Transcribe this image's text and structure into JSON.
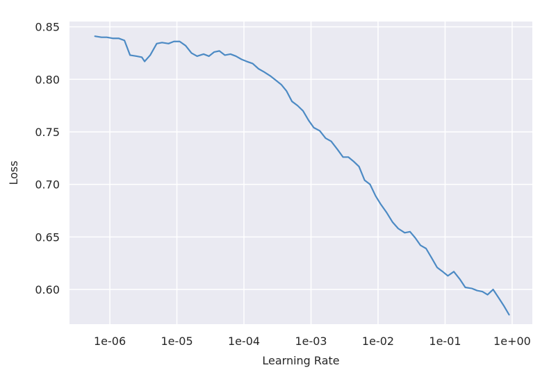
{
  "chart_data": {
    "type": "line",
    "title": "",
    "xlabel": "Learning Rate",
    "ylabel": "Loss",
    "x_scale": "log",
    "x_ticks": [
      {
        "value": 1e-06,
        "label": "1e-06"
      },
      {
        "value": 1e-05,
        "label": "1e-05"
      },
      {
        "value": 0.0001,
        "label": "1e-04"
      },
      {
        "value": 0.001,
        "label": "1e-03"
      },
      {
        "value": 0.01,
        "label": "1e-02"
      },
      {
        "value": 0.1,
        "label": "1e-01"
      },
      {
        "value": 1,
        "label": "1e+00"
      }
    ],
    "y_ticks": [
      {
        "value": 0.6,
        "label": "0.60"
      },
      {
        "value": 0.65,
        "label": "0.65"
      },
      {
        "value": 0.7,
        "label": "0.70"
      },
      {
        "value": 0.75,
        "label": "0.75"
      },
      {
        "value": 0.8,
        "label": "0.80"
      },
      {
        "value": 0.85,
        "label": "0.85"
      }
    ],
    "xlim": [
      2.5e-07,
      2.0
    ],
    "ylim": [
      0.567,
      0.855
    ],
    "grid": true,
    "background_color": "#eaeaf2",
    "grid_color": "#ffffff",
    "line_color": "#4c8ac4",
    "series": [
      {
        "x": [
          6e-07,
          7.5e-07,
          9e-07,
          1.1e-06,
          1.35e-06,
          1.65e-06,
          2e-06,
          2.5e-06,
          3e-06,
          3.3e-06,
          4e-06,
          5e-06,
          6e-06,
          7.5e-06,
          9e-06,
          1.1e-05,
          1.35e-05,
          1.65e-05,
          2e-05,
          2.5e-05,
          3e-05,
          3.6e-05,
          4.3e-05,
          5.2e-05,
          6.3e-05,
          7.6e-05,
          9.2e-05,
          0.00011,
          0.000135,
          0.000165,
          0.0002,
          0.00025,
          0.0003,
          0.00036,
          0.00043,
          0.00052,
          0.00063,
          0.00076,
          0.00092,
          0.0011,
          0.00135,
          0.00165,
          0.002,
          0.0025,
          0.003,
          0.0036,
          0.0043,
          0.0052,
          0.0063,
          0.0076,
          0.0092,
          0.011,
          0.0135,
          0.0165,
          0.02,
          0.025,
          0.03,
          0.036,
          0.043,
          0.052,
          0.063,
          0.076,
          0.092,
          0.11,
          0.135,
          0.165,
          0.2,
          0.25,
          0.3,
          0.36,
          0.43,
          0.52,
          0.63,
          0.76,
          0.9
        ],
        "y": [
          0.841,
          0.84,
          0.84,
          0.839,
          0.839,
          0.837,
          0.823,
          0.822,
          0.821,
          0.817,
          0.823,
          0.834,
          0.835,
          0.834,
          0.836,
          0.836,
          0.832,
          0.825,
          0.822,
          0.824,
          0.822,
          0.826,
          0.827,
          0.823,
          0.824,
          0.822,
          0.819,
          0.817,
          0.815,
          0.81,
          0.807,
          0.803,
          0.799,
          0.795,
          0.789,
          0.779,
          0.775,
          0.77,
          0.761,
          0.754,
          0.751,
          0.744,
          0.741,
          0.733,
          0.726,
          0.726,
          0.722,
          0.717,
          0.704,
          0.7,
          0.689,
          0.681,
          0.673,
          0.664,
          0.658,
          0.654,
          0.655,
          0.649,
          0.642,
          0.639,
          0.63,
          0.621,
          0.617,
          0.613,
          0.617,
          0.61,
          0.602,
          0.601,
          0.599,
          0.598,
          0.595,
          0.6,
          0.592,
          0.584,
          0.576
        ]
      }
    ]
  }
}
